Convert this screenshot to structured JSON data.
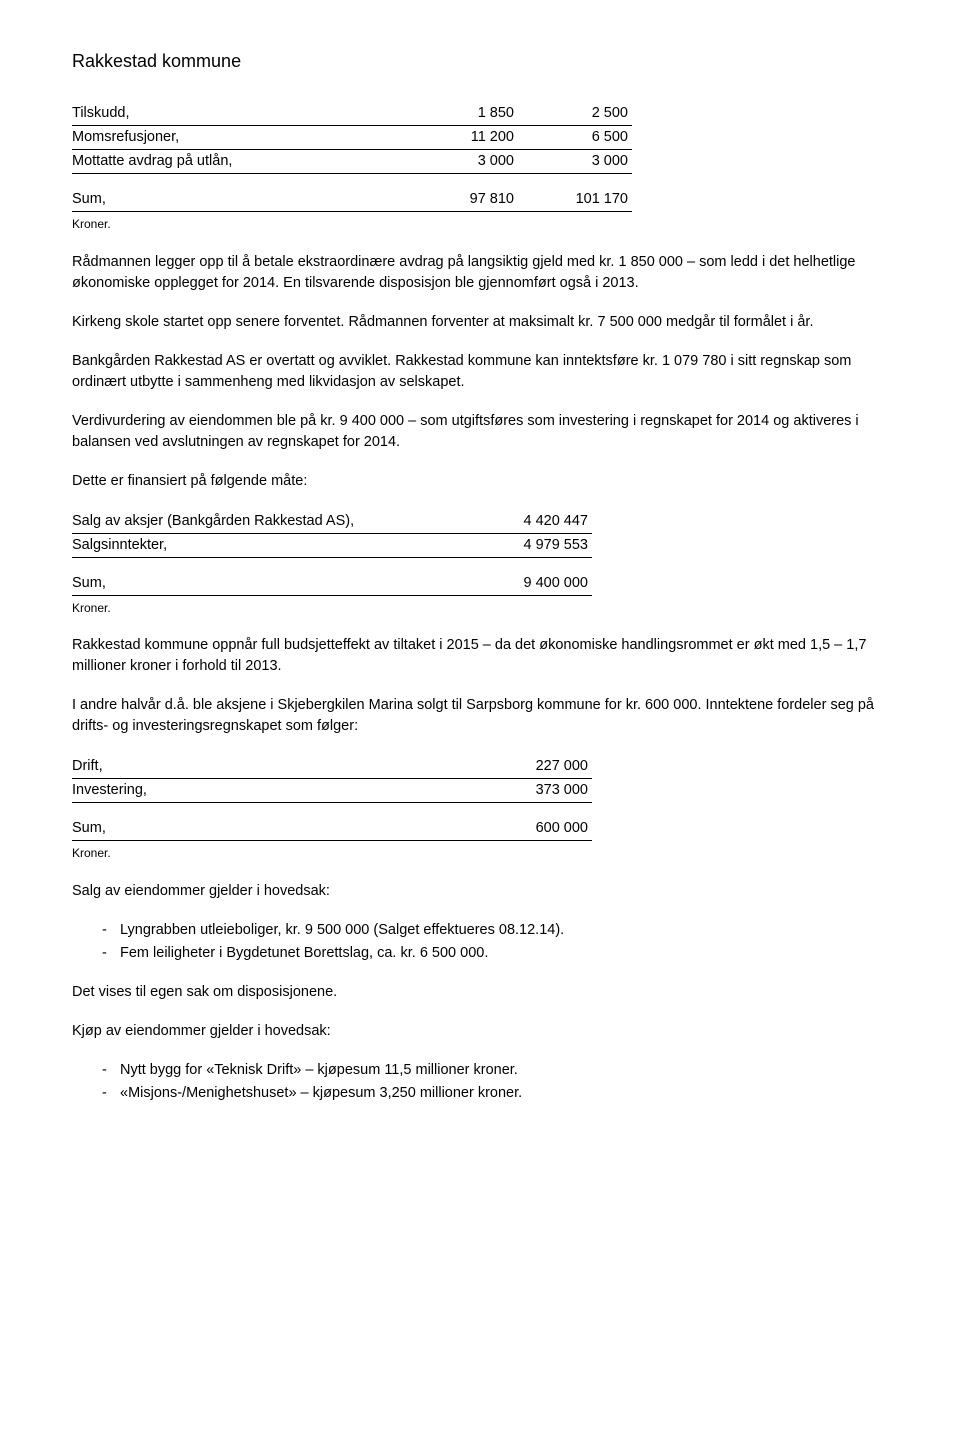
{
  "header": "Rakkestad kommune",
  "table1": {
    "rows": [
      {
        "label": "Tilskudd,",
        "c1": "1 850",
        "c2": "2 500"
      },
      {
        "label": "Momsrefusjoner,",
        "c1": "11 200",
        "c2": "6 500"
      },
      {
        "label": "Mottatte avdrag på utlån,",
        "c1": "3 000",
        "c2": "3 000"
      }
    ],
    "sum": {
      "label": "Sum,",
      "c1": "97 810",
      "c2": "101 170"
    },
    "note": "Kroner."
  },
  "para1": "Rådmannen legger opp til å betale ekstraordinære avdrag på langsiktig gjeld med kr. 1 850 000 – som ledd i det helhetlige økonomiske opplegget for 2014. En tilsvarende disposisjon ble gjennomført også i 2013.",
  "para2": "Kirkeng skole startet opp senere forventet. Rådmannen forventer at maksimalt kr. 7 500 000 medgår til formålet i år.",
  "para3": "Bankgården Rakkestad AS er overtatt og avviklet. Rakkestad kommune kan inntektsføre kr. 1 079 780 i sitt regnskap som ordinært utbytte i sammenheng med likvidasjon av selskapet.",
  "para4": "Verdivurdering av eiendommen ble på kr. 9 400 000 – som utgiftsføres som investering i regnskapet for 2014 og aktiveres i balansen ved avslutningen av regnskapet for 2014.",
  "para5": "Dette er finansiert på følgende måte:",
  "table2": {
    "rows": [
      {
        "label": "Salg av aksjer (Bankgården Rakkestad AS),",
        "c1": "4 420 447"
      },
      {
        "label": "Salgsinntekter,",
        "c1": "4 979 553"
      }
    ],
    "sum": {
      "label": "Sum,",
      "c1": "9 400 000"
    },
    "note": "Kroner."
  },
  "para6": "Rakkestad kommune oppnår full budsjetteffekt av tiltaket i 2015 – da det økonomiske handlingsrommet er økt med 1,5 – 1,7 millioner kroner i forhold til 2013.",
  "para7": "I andre halvår d.å. ble aksjene i Skjebergkilen Marina solgt til Sarpsborg kommune for kr. 600 000. Inntektene fordeler seg på drifts- og investeringsregnskapet som følger:",
  "table3": {
    "rows": [
      {
        "label": "Drift,",
        "c1": "227 000"
      },
      {
        "label": "Investering,",
        "c1": "373 000"
      }
    ],
    "sum": {
      "label": "Sum,",
      "c1": "600 000"
    },
    "note": "Kroner."
  },
  "para8": "Salg av eiendommer gjelder i hovedsak:",
  "list1": [
    "Lyngrabben utleieboliger, kr. 9 500 000 (Salget effektueres 08.12.14).",
    "Fem leiligheter i Bygdetunet Borettslag, ca. kr. 6 500 000."
  ],
  "para9": "Det vises til egen sak om disposisjonene.",
  "para10": "Kjøp av eiendommer gjelder i hovedsak:",
  "list2": [
    "Nytt bygg for «Teknisk Drift» – kjøpesum 11,5 millioner kroner.",
    "«Misjons-/Menighetshuset» – kjøpesum 3,250 millioner kroner."
  ]
}
